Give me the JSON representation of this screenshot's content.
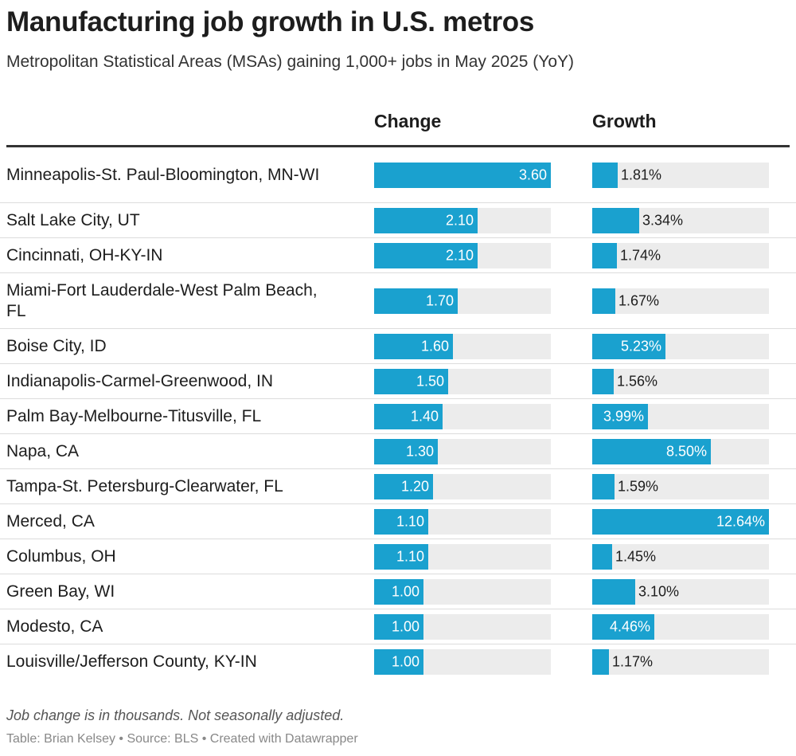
{
  "title": "Manufacturing job growth in U.S. metros",
  "subtitle": "Metropolitan Statistical Areas (MSAs) gaining 1,000+ jobs in May 2025 (YoY)",
  "columns": {
    "change": "Change",
    "growth": "Growth"
  },
  "chart_data": {
    "type": "table",
    "title": "Manufacturing job growth in U.S. metros",
    "columns": [
      "",
      "Change",
      "Growth"
    ],
    "change_max": 3.6,
    "growth_max": 12.64,
    "rows": [
      {
        "metro": "Minneapolis-St. Paul-Bloomington, MN-WI",
        "change": 3.6,
        "change_label": "3.60",
        "growth": 1.81,
        "growth_label": "1.81%"
      },
      {
        "metro": "Salt Lake City, UT",
        "change": 2.1,
        "change_label": "2.10",
        "growth": 3.34,
        "growth_label": "3.34%"
      },
      {
        "metro": "Cincinnati, OH-KY-IN",
        "change": 2.1,
        "change_label": "2.10",
        "growth": 1.74,
        "growth_label": "1.74%"
      },
      {
        "metro": "Miami-Fort Lauderdale-West Palm Beach, FL",
        "change": 1.7,
        "change_label": "1.70",
        "growth": 1.67,
        "growth_label": "1.67%"
      },
      {
        "metro": "Boise City, ID",
        "change": 1.6,
        "change_label": "1.60",
        "growth": 5.23,
        "growth_label": "5.23%"
      },
      {
        "metro": "Indianapolis-Carmel-Greenwood, IN",
        "change": 1.5,
        "change_label": "1.50",
        "growth": 1.56,
        "growth_label": "1.56%"
      },
      {
        "metro": "Palm Bay-Melbourne-Titusville, FL",
        "change": 1.4,
        "change_label": "1.40",
        "growth": 3.99,
        "growth_label": "3.99%"
      },
      {
        "metro": "Napa, CA",
        "change": 1.3,
        "change_label": "1.30",
        "growth": 8.5,
        "growth_label": "8.50%"
      },
      {
        "metro": "Tampa-St. Petersburg-Clearwater, FL",
        "change": 1.2,
        "change_label": "1.20",
        "growth": 1.59,
        "growth_label": "1.59%"
      },
      {
        "metro": "Merced, CA",
        "change": 1.1,
        "change_label": "1.10",
        "growth": 12.64,
        "growth_label": "12.64%"
      },
      {
        "metro": "Columbus, OH",
        "change": 1.1,
        "change_label": "1.10",
        "growth": 1.45,
        "growth_label": "1.45%"
      },
      {
        "metro": "Green Bay, WI",
        "change": 1.0,
        "change_label": "1.00",
        "growth": 3.1,
        "growth_label": "3.10%"
      },
      {
        "metro": "Modesto, CA",
        "change": 1.0,
        "change_label": "1.00",
        "growth": 4.46,
        "growth_label": "4.46%"
      },
      {
        "metro": "Louisville/Jefferson County, KY-IN",
        "change": 1.0,
        "change_label": "1.00",
        "growth": 1.17,
        "growth_label": "1.17%"
      }
    ]
  },
  "note": "Job change is in thousands. Not seasonally adjusted.",
  "credit": "Table: Brian Kelsey • Source: BLS • Created with Datawrapper",
  "colors": {
    "bar": "#1aa1cf",
    "track": "#ececec"
  }
}
